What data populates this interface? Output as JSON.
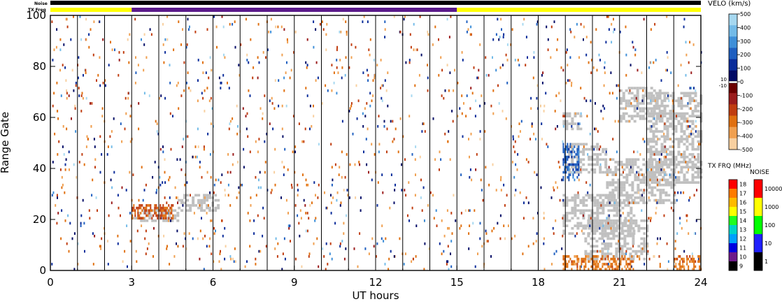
{
  "chart_data": {
    "type": "heatmap",
    "xlabel": "UT hours",
    "ylabel": "Range Gate",
    "xlim": [
      0,
      24
    ],
    "ylim": [
      0,
      100
    ],
    "x_ticks": [
      "0",
      "3",
      "6",
      "9",
      "12",
      "15",
      "18",
      "21",
      "24"
    ],
    "y_ticks": [
      "0",
      "20",
      "40",
      "60",
      "80",
      "100"
    ],
    "scan_boundaries_hours": [
      1,
      2,
      3,
      4,
      5,
      6,
      7,
      8,
      9,
      10,
      11,
      12,
      13,
      14,
      15,
      16,
      17,
      18,
      19,
      20,
      21,
      22,
      23
    ],
    "bars": {
      "noise_label": "Noise",
      "txfreq_label": "TX Freq",
      "txfreq_segments": [
        {
          "start": 0,
          "end": 3,
          "freq_mhz": 15,
          "color": "#ffff00"
        },
        {
          "start": 3,
          "end": 15,
          "freq_mhz": 10,
          "color": "#5a1a8a"
        },
        {
          "start": 15,
          "end": 24,
          "freq_mhz": 15,
          "color": "#ffff00"
        }
      ]
    },
    "ground_scatter_color": "#c0c0c0",
    "ground_scatter_regions": [
      {
        "t0": 3.0,
        "t1": 4.7,
        "g0": 19,
        "g1": 24
      },
      {
        "t0": 4.7,
        "t1": 6.2,
        "g0": 23,
        "g1": 30
      },
      {
        "t0": 18.9,
        "t1": 21.5,
        "g0": 14,
        "g1": 30
      },
      {
        "t0": 19.7,
        "t1": 22.0,
        "g0": 4,
        "g1": 20
      },
      {
        "t0": 20.5,
        "t1": 23.0,
        "g0": 26,
        "g1": 44
      },
      {
        "t0": 22.0,
        "t1": 24.0,
        "g0": 34,
        "g1": 70
      },
      {
        "t0": 21.0,
        "t1": 22.5,
        "g0": 58,
        "g1": 72
      },
      {
        "t0": 19.0,
        "t1": 20.5,
        "g0": 38,
        "g1": 50
      },
      {
        "t0": 18.9,
        "t1": 19.6,
        "g0": 55,
        "g1": 62
      }
    ],
    "velocity_regions": [
      {
        "t0": 18.9,
        "t1": 19.5,
        "g0": 35,
        "g1": 50,
        "v": 200
      },
      {
        "t0": 18.9,
        "t1": 21.5,
        "g0": 0,
        "g1": 6,
        "v": -300
      },
      {
        "t0": 23.0,
        "t1": 24.0,
        "g0": 0,
        "g1": 6,
        "v": -300
      },
      {
        "t0": 3.0,
        "t1": 4.5,
        "g0": 20,
        "g1": 26,
        "v": -250
      }
    ],
    "velocity_scale": {
      "title": "VELO (km/s)",
      "ticks": [
        "500",
        "400",
        "300",
        "200",
        "100",
        "0",
        "-100",
        "-200",
        "-300",
        "-400",
        "-500"
      ],
      "side_ticks": [
        "10",
        "-10"
      ],
      "colors": [
        "#a6d8f0",
        "#73bbe8",
        "#3f8fd8",
        "#1f5fc0",
        "#0a2c9a",
        "#000a66",
        "#6b0000",
        "#9b1c1c",
        "#c03d10",
        "#e07010",
        "#f0a050",
        "#f8d0a0"
      ]
    },
    "txfreq_scale": {
      "title": "TX FRQ (MHz)",
      "ticks": [
        "18",
        "17",
        "16",
        "15",
        "14",
        "13",
        "12",
        "11",
        "10",
        "9"
      ],
      "colors": [
        "#ff0000",
        "#ff7b00",
        "#ffbb00",
        "#ffff00",
        "#20ff20",
        "#00d4c8",
        "#00a0ff",
        "#0000e0",
        "#6e1a8a",
        "#000000"
      ]
    },
    "noise_scale": {
      "title": "NOISE",
      "ticks": [
        "10000",
        "1000",
        "100",
        "10",
        "1"
      ],
      "colors": [
        "#ff0000",
        "#ffff00",
        "#00ff00",
        "#2020ff",
        "#000000"
      ]
    }
  }
}
